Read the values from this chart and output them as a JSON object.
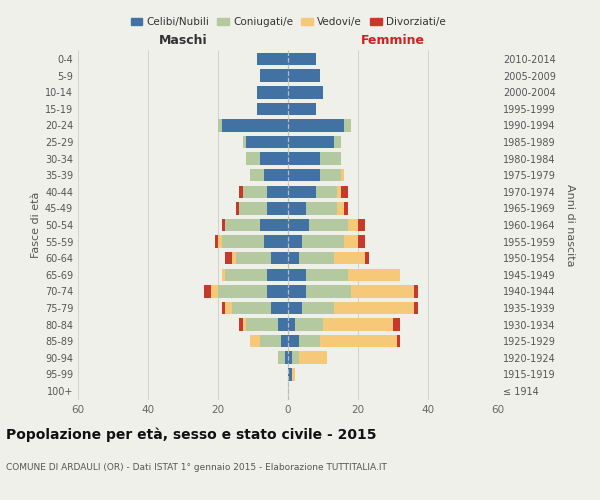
{
  "age_groups": [
    "100+",
    "95-99",
    "90-94",
    "85-89",
    "80-84",
    "75-79",
    "70-74",
    "65-69",
    "60-64",
    "55-59",
    "50-54",
    "45-49",
    "40-44",
    "35-39",
    "30-34",
    "25-29",
    "20-24",
    "15-19",
    "10-14",
    "5-9",
    "0-4"
  ],
  "birth_years": [
    "≤ 1914",
    "1915-1919",
    "1920-1924",
    "1925-1929",
    "1930-1934",
    "1935-1939",
    "1940-1944",
    "1945-1949",
    "1950-1954",
    "1955-1959",
    "1960-1964",
    "1965-1969",
    "1970-1974",
    "1975-1979",
    "1980-1984",
    "1985-1989",
    "1990-1994",
    "1995-1999",
    "2000-2004",
    "2005-2009",
    "2010-2014"
  ],
  "maschi": {
    "celibi": [
      0,
      0,
      1,
      2,
      3,
      5,
      6,
      6,
      5,
      7,
      8,
      6,
      6,
      7,
      8,
      12,
      19,
      9,
      9,
      8,
      9
    ],
    "coniugati": [
      0,
      0,
      2,
      6,
      9,
      11,
      14,
      12,
      10,
      12,
      10,
      8,
      7,
      4,
      4,
      1,
      1,
      0,
      0,
      0,
      0
    ],
    "vedovi": [
      0,
      0,
      0,
      3,
      1,
      2,
      2,
      1,
      1,
      1,
      0,
      0,
      0,
      0,
      0,
      0,
      0,
      0,
      0,
      0,
      0
    ],
    "divorziati": [
      0,
      0,
      0,
      0,
      1,
      1,
      2,
      0,
      2,
      1,
      1,
      1,
      1,
      0,
      0,
      0,
      0,
      0,
      0,
      0,
      0
    ]
  },
  "femmine": {
    "nubili": [
      0,
      1,
      1,
      3,
      2,
      4,
      5,
      5,
      3,
      4,
      6,
      5,
      8,
      9,
      9,
      13,
      16,
      8,
      10,
      9,
      8
    ],
    "coniugate": [
      0,
      0,
      2,
      6,
      8,
      9,
      13,
      12,
      10,
      12,
      11,
      9,
      6,
      6,
      6,
      2,
      2,
      0,
      0,
      0,
      0
    ],
    "vedove": [
      0,
      1,
      8,
      22,
      20,
      23,
      18,
      15,
      9,
      4,
      3,
      2,
      1,
      1,
      0,
      0,
      0,
      0,
      0,
      0,
      0
    ],
    "divorziate": [
      0,
      0,
      0,
      1,
      2,
      1,
      1,
      0,
      1,
      2,
      2,
      1,
      2,
      0,
      0,
      0,
      0,
      0,
      0,
      0,
      0
    ]
  },
  "colors": {
    "celibi": "#4272a4",
    "coniugati": "#b5c9a0",
    "vedovi": "#f5c978",
    "divorziati": "#c8392b"
  },
  "xlim": 60,
  "title": "Popolazione per età, sesso e stato civile - 2015",
  "subtitle": "COMUNE DI ARDAULI (OR) - Dati ISTAT 1° gennaio 2015 - Elaborazione TUTTITALIA.IT",
  "ylabel_left": "Fasce di età",
  "ylabel_right": "Anni di nascita",
  "label_maschi": "Maschi",
  "label_femmine": "Femmine",
  "bg_color": "#f0f0eb",
  "grid_color": "#cccccc"
}
